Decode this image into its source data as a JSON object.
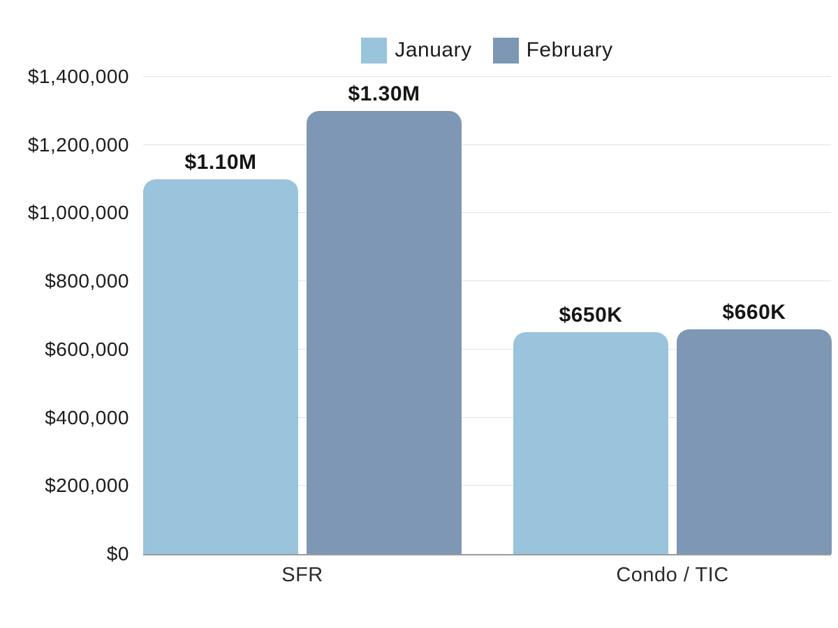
{
  "chart_data": {
    "type": "bar",
    "title": "",
    "categories": [
      "SFR",
      "Condo / TIC"
    ],
    "series": [
      {
        "name": "January",
        "color": "#9ac3dc",
        "values": [
          1100000,
          650000
        ],
        "value_labels": [
          "$1.10M",
          "$650K"
        ]
      },
      {
        "name": "February",
        "color": "#7d97b4",
        "values": [
          1300000,
          660000
        ],
        "value_labels": [
          "$1.30M",
          "$660K"
        ]
      }
    ],
    "xlabel": "",
    "ylabel": "",
    "ylim": [
      0,
      1400000
    ],
    "y_ticks": [
      {
        "value": 1400000,
        "label": "$1,400,000"
      },
      {
        "value": 1200000,
        "label": "$1,200,000"
      },
      {
        "value": 1000000,
        "label": "$1,000,000"
      },
      {
        "value": 800000,
        "label": "$800,000"
      },
      {
        "value": 600000,
        "label": "$600,000"
      },
      {
        "value": 400000,
        "label": "$400,000"
      },
      {
        "value": 200000,
        "label": "$200,000"
      },
      {
        "value": 0,
        "label": "$0"
      }
    ],
    "grid": true,
    "legend_position": "top",
    "colors": {
      "gridline": "#e3e3e3",
      "baseline": "#9b9b9b",
      "text": "#1c1c1c"
    }
  }
}
